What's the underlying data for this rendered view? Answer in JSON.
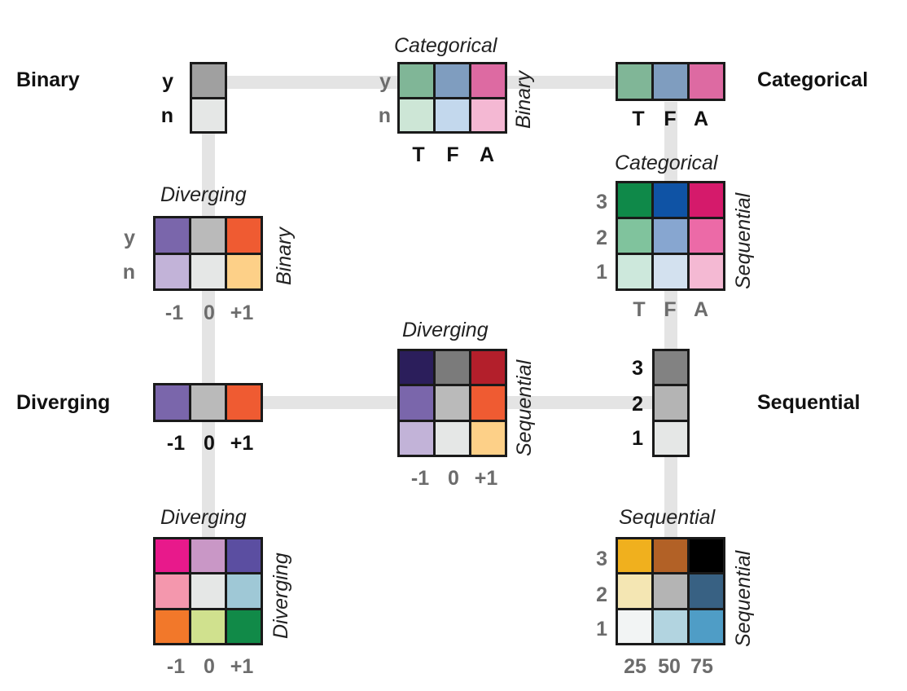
{
  "side_titles": {
    "binary": "Binary",
    "categorical": "Categorical",
    "diverging": "Diverging",
    "sequential": "Sequential"
  },
  "captions": {
    "cat_binary_top": "Categorical",
    "cat_binary_side": "Binary",
    "div_binary_top": "Diverging",
    "div_binary_side": "Binary",
    "cat_seq_top": "Categorical",
    "cat_seq_side": "Sequential",
    "div_seq_top": "Diverging",
    "div_seq_side": "Sequential",
    "div_div_top": "Diverging",
    "div_div_side": "Diverging",
    "seq_seq_top": "Sequential",
    "seq_seq_side": "Sequential"
  },
  "binary_labels": [
    "y",
    "n"
  ],
  "categorical_labels": [
    "T",
    "F",
    "A"
  ],
  "diverging_labels": [
    "-1",
    "0",
    "+1"
  ],
  "sequential_labels": [
    "3",
    "2",
    "1"
  ],
  "seq_value_labels": [
    "25",
    "50",
    "75"
  ],
  "palettes": {
    "binary": [
      "#a0a0a0",
      "#e5e7e6"
    ],
    "categorical": [
      "#80b697",
      "#7f9dbf",
      "#dd6aa2"
    ],
    "diverging": [
      "#7a66ab",
      "#bababa",
      "#ef5b32"
    ],
    "sequential": [
      "#828282",
      "#b4b4b4",
      "#e5e7e6"
    ],
    "cat_binary": [
      [
        "#80b697",
        "#7f9dbf",
        "#dd6aa2"
      ],
      [
        "#cde6d6",
        "#c3d8ed",
        "#f4b8d3"
      ]
    ],
    "div_binary": [
      [
        "#7a66ab",
        "#bababa",
        "#ef5b32"
      ],
      [
        "#c2b3d8",
        "#e5e7e6",
        "#fdd088"
      ]
    ],
    "cat_seq": [
      [
        "#0f8949",
        "#0f53a5",
        "#d51a6b"
      ],
      [
        "#80c39d",
        "#87a6d0",
        "#ec6aa7"
      ],
      [
        "#cde8dc",
        "#d3e1ef",
        "#f4b9d3"
      ]
    ],
    "div_seq": [
      [
        "#2b1e5b",
        "#7b7b7b",
        "#b31f2b"
      ],
      [
        "#7a66ab",
        "#bababa",
        "#ef5b32"
      ],
      [
        "#c2b3d8",
        "#e5e7e6",
        "#fdd088"
      ]
    ],
    "div_div": [
      [
        "#e8198b",
        "#c997c6",
        "#5b4ea1"
      ],
      [
        "#f497ad",
        "#e5e7e6",
        "#9fc8d6"
      ],
      [
        "#f2782a",
        "#d0e18e",
        "#118a48"
      ]
    ],
    "seq_seq": [
      [
        "#f0b01e",
        "#b26126",
        "#000000"
      ],
      [
        "#f4e6b3",
        "#b4b4b4",
        "#386183"
      ],
      [
        "#f2f4f4",
        "#b2d4e0",
        "#4f9dc6"
      ]
    ]
  }
}
